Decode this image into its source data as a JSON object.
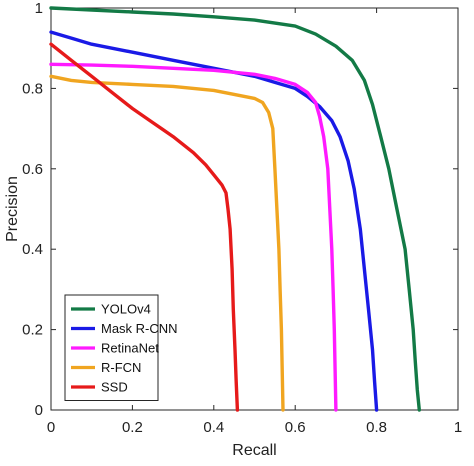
{
  "chart_data": {
    "type": "line",
    "title": "",
    "xlabel": "Recall",
    "ylabel": "Precision",
    "xlim": [
      0,
      1
    ],
    "ylim": [
      0,
      1
    ],
    "xticks": [
      "0",
      "0.2",
      "0.4",
      "0.6",
      "0.8",
      "1"
    ],
    "yticks": [
      "0",
      "0.2",
      "0.4",
      "0.6",
      "0.8",
      "1"
    ],
    "grid": false,
    "legend": {
      "placement": "bottom-left"
    },
    "series": [
      {
        "name": "YOLOv4",
        "color": "#137a46",
        "points": [
          [
            0,
            1.0
          ],
          [
            0.1,
            0.995
          ],
          [
            0.2,
            0.99
          ],
          [
            0.3,
            0.985
          ],
          [
            0.4,
            0.978
          ],
          [
            0.5,
            0.97
          ],
          [
            0.6,
            0.955
          ],
          [
            0.65,
            0.935
          ],
          [
            0.7,
            0.905
          ],
          [
            0.74,
            0.87
          ],
          [
            0.77,
            0.82
          ],
          [
            0.79,
            0.76
          ],
          [
            0.81,
            0.68
          ],
          [
            0.83,
            0.6
          ],
          [
            0.85,
            0.5
          ],
          [
            0.87,
            0.4
          ],
          [
            0.88,
            0.3
          ],
          [
            0.89,
            0.2
          ],
          [
            0.895,
            0.12
          ],
          [
            0.9,
            0.05
          ],
          [
            0.905,
            0.0
          ]
        ]
      },
      {
        "name": "Mask R-CNN",
        "color": "#1a1ae6",
        "points": [
          [
            0,
            0.94
          ],
          [
            0.05,
            0.925
          ],
          [
            0.1,
            0.91
          ],
          [
            0.2,
            0.89
          ],
          [
            0.3,
            0.87
          ],
          [
            0.4,
            0.85
          ],
          [
            0.45,
            0.84
          ],
          [
            0.5,
            0.83
          ],
          [
            0.55,
            0.815
          ],
          [
            0.6,
            0.8
          ],
          [
            0.63,
            0.78
          ],
          [
            0.66,
            0.755
          ],
          [
            0.69,
            0.72
          ],
          [
            0.71,
            0.68
          ],
          [
            0.73,
            0.62
          ],
          [
            0.745,
            0.55
          ],
          [
            0.76,
            0.45
          ],
          [
            0.77,
            0.35
          ],
          [
            0.78,
            0.25
          ],
          [
            0.79,
            0.15
          ],
          [
            0.795,
            0.07
          ],
          [
            0.8,
            0.0
          ]
        ]
      },
      {
        "name": "RetinaNet",
        "color": "#ff1aff",
        "points": [
          [
            0,
            0.86
          ],
          [
            0.1,
            0.858
          ],
          [
            0.2,
            0.855
          ],
          [
            0.3,
            0.85
          ],
          [
            0.4,
            0.845
          ],
          [
            0.5,
            0.835
          ],
          [
            0.55,
            0.825
          ],
          [
            0.6,
            0.81
          ],
          [
            0.63,
            0.79
          ],
          [
            0.65,
            0.765
          ],
          [
            0.66,
            0.73
          ],
          [
            0.67,
            0.68
          ],
          [
            0.68,
            0.6
          ],
          [
            0.685,
            0.5
          ],
          [
            0.69,
            0.4
          ],
          [
            0.693,
            0.3
          ],
          [
            0.696,
            0.2
          ],
          [
            0.698,
            0.1
          ],
          [
            0.7,
            0.0
          ]
        ]
      },
      {
        "name": "R-FCN",
        "color": "#f0a520",
        "points": [
          [
            0,
            0.83
          ],
          [
            0.05,
            0.82
          ],
          [
            0.1,
            0.815
          ],
          [
            0.2,
            0.81
          ],
          [
            0.3,
            0.805
          ],
          [
            0.4,
            0.795
          ],
          [
            0.45,
            0.785
          ],
          [
            0.5,
            0.775
          ],
          [
            0.52,
            0.765
          ],
          [
            0.535,
            0.74
          ],
          [
            0.545,
            0.7
          ],
          [
            0.55,
            0.6
          ],
          [
            0.555,
            0.5
          ],
          [
            0.56,
            0.4
          ],
          [
            0.563,
            0.3
          ],
          [
            0.566,
            0.2
          ],
          [
            0.568,
            0.1
          ],
          [
            0.57,
            0.0
          ]
        ]
      },
      {
        "name": "SSD",
        "color": "#e61a1a",
        "points": [
          [
            0,
            0.91
          ],
          [
            0.05,
            0.87
          ],
          [
            0.1,
            0.83
          ],
          [
            0.15,
            0.79
          ],
          [
            0.2,
            0.75
          ],
          [
            0.25,
            0.715
          ],
          [
            0.3,
            0.68
          ],
          [
            0.35,
            0.64
          ],
          [
            0.38,
            0.61
          ],
          [
            0.4,
            0.585
          ],
          [
            0.42,
            0.56
          ],
          [
            0.43,
            0.54
          ],
          [
            0.435,
            0.5
          ],
          [
            0.44,
            0.45
          ],
          [
            0.445,
            0.35
          ],
          [
            0.448,
            0.25
          ],
          [
            0.452,
            0.15
          ],
          [
            0.455,
            0.07
          ],
          [
            0.458,
            0.0
          ]
        ]
      }
    ]
  }
}
